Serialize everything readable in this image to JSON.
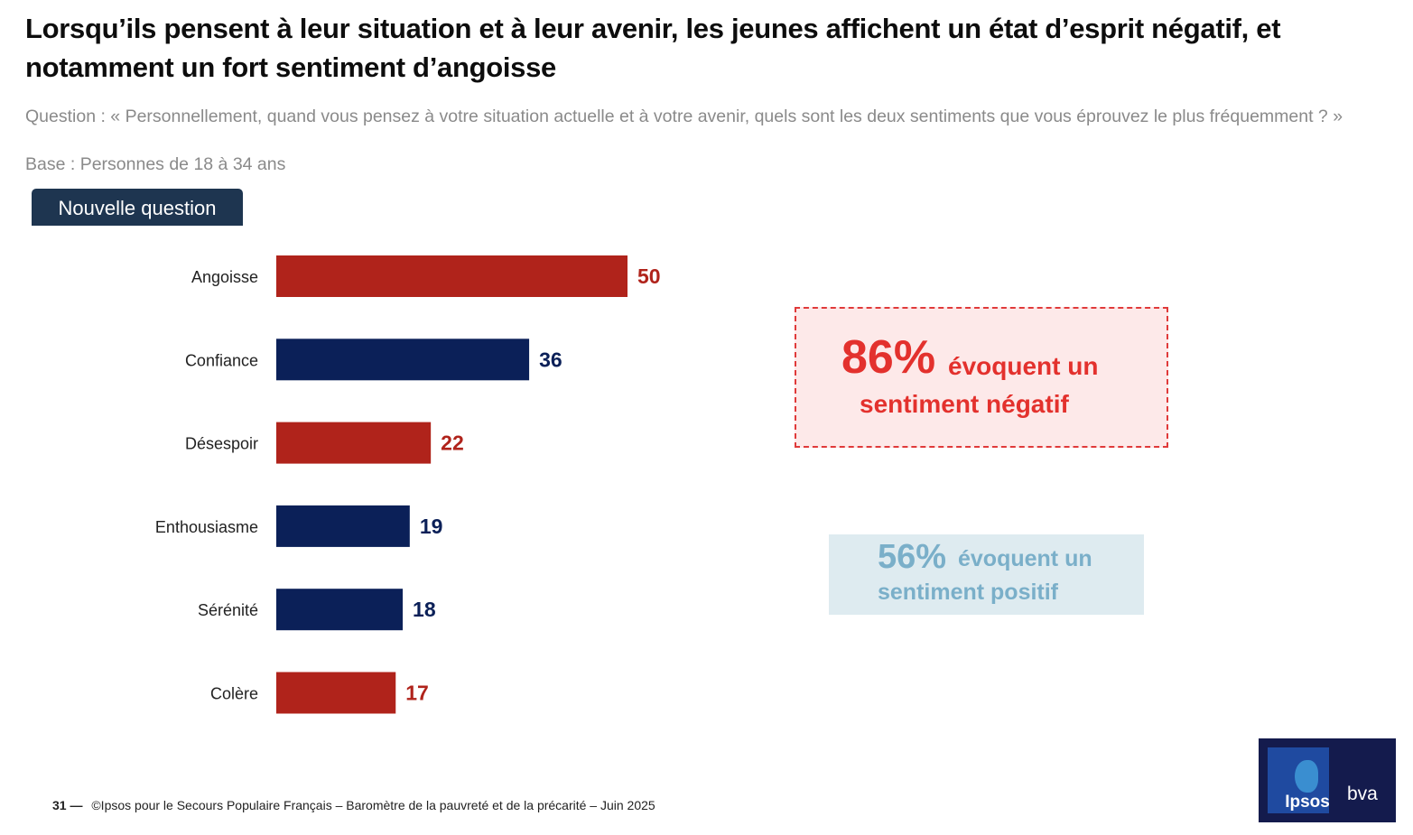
{
  "title": "Lorsqu’ils pensent à leur situation et à leur avenir, les jeunes affichent un état d’esprit négatif, et notamment un fort sentiment d’angoisse",
  "question": "Question : « Personnellement, quand vous pensez à votre situation actuelle et à votre avenir, quels sont les deux sentiments que vous éprouvez le plus fréquemment ? »",
  "base": "Base : Personnes de 18 à 34 ans",
  "badge": "Nouvelle question",
  "colors": {
    "negative": "#b0231b",
    "positive": "#0b2058",
    "callout_negative": "#e3312d",
    "callout_positive": "#7aafc9",
    "badge": "#1e3550"
  },
  "chart_data": {
    "type": "bar",
    "orientation": "horizontal",
    "categories": [
      "Angoisse",
      "Confiance",
      "Désespoir",
      "Enthousiasme",
      "Sérénité",
      "Colère"
    ],
    "values": [
      50,
      36,
      22,
      19,
      18,
      17
    ],
    "sentiment": [
      "negative",
      "positive",
      "negative",
      "positive",
      "positive",
      "negative"
    ],
    "xlim": [
      0,
      100
    ],
    "grid": false,
    "legend": "none"
  },
  "callouts": {
    "negative": {
      "pct": "86%",
      "line1": "évoquent un",
      "line2": "sentiment négatif"
    },
    "positive": {
      "pct": "56%",
      "line1": "évoquent un",
      "line2": "sentiment positif"
    }
  },
  "footer": {
    "page": "31 —",
    "text": "©Ipsos pour le Secours Populaire Français – Baromètre de la pauvreté et de la précarité – Juin 2025"
  },
  "logo": {
    "brand": "Ipsos",
    "partner": "bva"
  }
}
